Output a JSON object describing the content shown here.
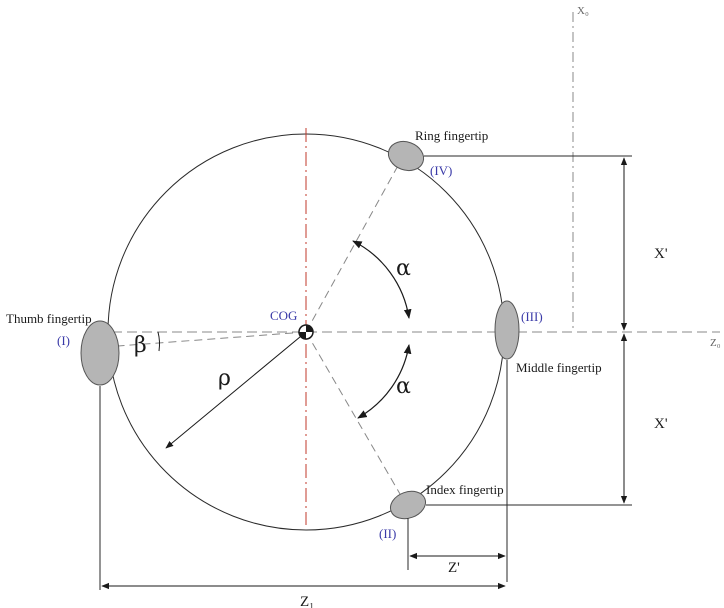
{
  "labels": {
    "axis_x": "X₀",
    "axis_z": "Z₀",
    "cog": "COG",
    "alpha_top": "α",
    "alpha_bottom": "α",
    "beta": "β",
    "rho": "ρ",
    "dim_x_top": "X'",
    "dim_x_bottom": "X'",
    "dim_z_small": "Z'",
    "dim_z_large": "Z₁"
  },
  "fingertips": {
    "thumb": {
      "name": "Thumb fingertip",
      "roman": "(I)"
    },
    "index": {
      "name": "Index fingertip",
      "roman": "(II)"
    },
    "middle": {
      "name": "Middle fingertip",
      "roman": "(III)"
    },
    "ring": {
      "name": "Ring fingertip",
      "roman": "(IV)"
    }
  },
  "colors": {
    "line": "#2a2a2a",
    "centerline_red": "#c0392b",
    "fingertip_fill": "#b5b5b5",
    "roman_label": "#3a3aa8"
  }
}
